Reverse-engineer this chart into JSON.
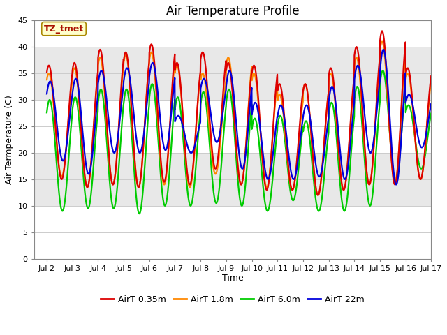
{
  "title": "Air Temperature Profile",
  "xlabel": "Time",
  "ylabel": "Air Termperature (C)",
  "ylim": [
    0,
    45
  ],
  "xlim_start": 1.5,
  "xlim_end": 16.6,
  "x_ticks": [
    2,
    3,
    4,
    5,
    6,
    7,
    8,
    9,
    10,
    11,
    12,
    13,
    14,
    15,
    16,
    17
  ],
  "x_tick_labels": [
    "Jul 2",
    "Jul 3",
    "Jul 4",
    "Jul 5",
    "Jul 6",
    "Jul 7",
    "Jul 8",
    "Jul 9",
    "Jul 10",
    "Jul 11",
    "Jul 12",
    "Jul 13",
    "Jul 14",
    "Jul 15",
    "Jul 16",
    "Jul 17"
  ],
  "y_ticks": [
    0,
    5,
    10,
    15,
    20,
    25,
    30,
    35,
    40,
    45
  ],
  "lines": [
    {
      "label": "AirT 0.35m",
      "color": "#dd0000"
    },
    {
      "label": "AirT 1.8m",
      "color": "#ff8800"
    },
    {
      "label": "AirT 6.0m",
      "color": "#00cc00"
    },
    {
      "label": "AirT 22m",
      "color": "#0000dd"
    }
  ],
  "annotation_text": "TZ_tmet",
  "annotation_color": "#aa1100",
  "annotation_bg": "#ffffcc",
  "annotation_edge": "#aa8800",
  "band_colors": [
    "#ffffff",
    "#e8e8e8"
  ],
  "band_edges": [
    0,
    10,
    20,
    30,
    40,
    45
  ],
  "title_fontsize": 12,
  "axis_label_fontsize": 9,
  "tick_fontsize": 8,
  "legend_fontsize": 9,
  "line_width": 1.6,
  "grid_color": "#cccccc",
  "daily_peaks_035": [
    36.5,
    37.0,
    39.5,
    39.0,
    40.5,
    37.0,
    39.0,
    37.0,
    36.5,
    33.0,
    33.0,
    36.0,
    40.0,
    43.0,
    36.0
  ],
  "daily_mins_035": [
    15.0,
    13.5,
    14.0,
    13.5,
    14.5,
    14.0,
    17.0,
    14.0,
    13.0,
    13.0,
    12.0,
    13.0,
    14.0,
    14.0,
    15.0
  ],
  "daily_peaks_18": [
    35.0,
    36.0,
    38.0,
    38.5,
    39.0,
    36.5,
    35.0,
    38.0,
    35.0,
    31.0,
    33.0,
    35.0,
    38.0,
    41.0,
    35.0
  ],
  "daily_mins_18": [
    15.5,
    13.5,
    14.0,
    13.5,
    14.0,
    13.5,
    16.0,
    14.0,
    13.5,
    13.0,
    12.0,
    13.0,
    14.0,
    14.5,
    15.0
  ],
  "daily_peaks_60": [
    30.0,
    30.5,
    32.0,
    32.0,
    33.0,
    30.5,
    31.5,
    32.0,
    26.5,
    27.0,
    26.0,
    29.5,
    32.5,
    35.5,
    29.0
  ],
  "daily_mins_60": [
    9.0,
    9.5,
    9.5,
    8.5,
    10.0,
    10.0,
    10.5,
    10.0,
    9.0,
    11.0,
    9.0,
    9.0,
    10.0,
    14.5,
    17.0
  ],
  "daily_peaks_22m": [
    33.5,
    34.0,
    35.5,
    36.0,
    37.0,
    27.0,
    34.0,
    35.5,
    29.5,
    29.0,
    29.0,
    32.5,
    36.5,
    39.5,
    31.0
  ],
  "daily_mins_22m": [
    18.5,
    16.0,
    20.0,
    20.0,
    20.5,
    20.0,
    22.0,
    17.0,
    15.0,
    15.0,
    15.5,
    15.0,
    20.0,
    14.0,
    21.0
  ],
  "peak_phase": 0.58,
  "n_per_day": 144,
  "start_day": 2
}
